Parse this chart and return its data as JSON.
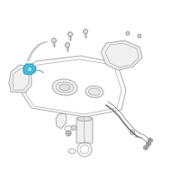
{
  "bg_color": "#ffffff",
  "line_color": "#aaaaaa",
  "dark_color": "#777777",
  "highlight_color": "#44bbdd",
  "highlight_edge": "#2299bb"
}
